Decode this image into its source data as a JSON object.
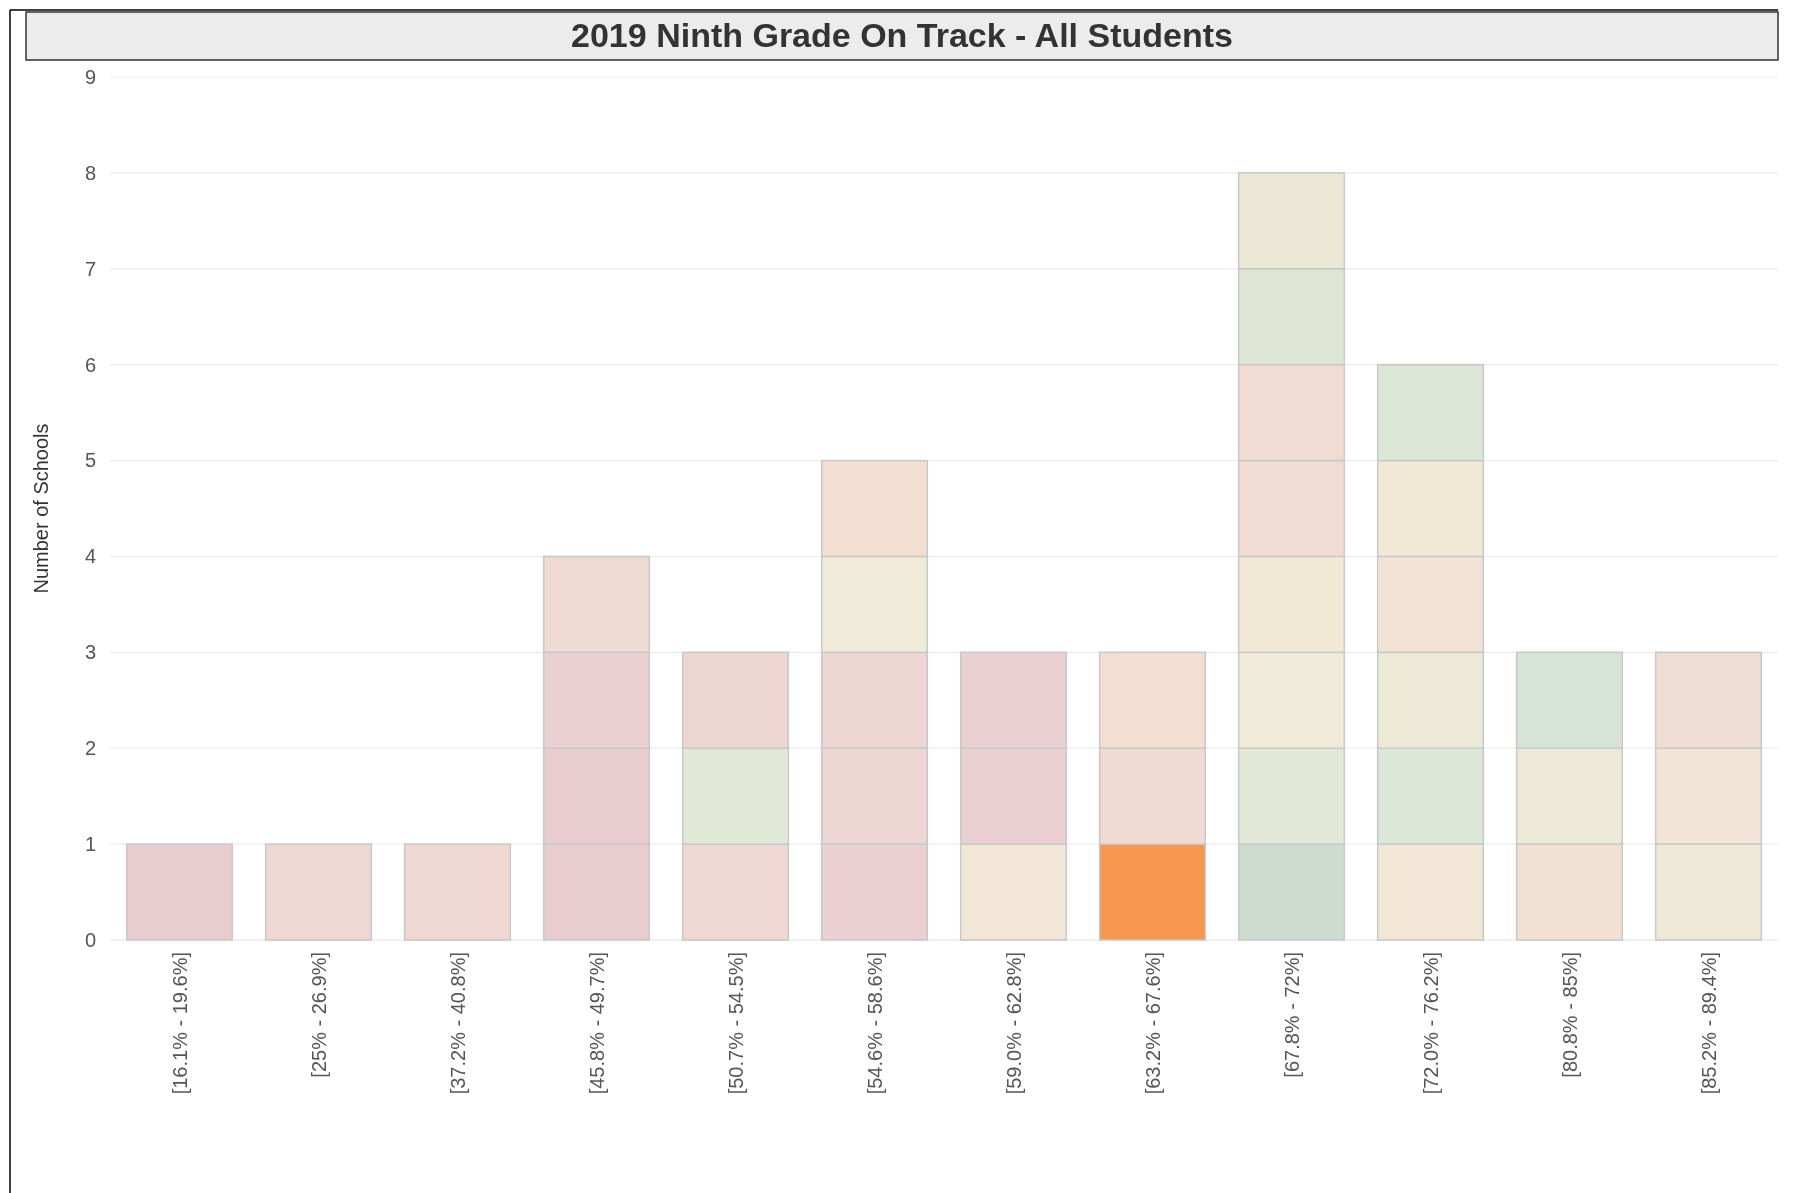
{
  "chart_data": {
    "type": "bar",
    "title": "2019 Ninth Grade On Track - All Students",
    "ylabel": "Number of Schools",
    "categories": [
      "[16.1% - 19.6%]",
      "[25% - 26.9%]",
      "[37.2% - 40.8%]",
      "[45.8% - 49.7%]",
      "[50.7% - 54.5%]",
      "[54.6% - 58.6%]",
      "[59.0% - 62.8%]",
      "[63.2% - 67.6%]",
      "[67.8% - 72%]",
      "[72.0% - 76.2%]",
      "[80.8% - 85%]",
      "[85.2% - 89.4%]"
    ],
    "stacked": true,
    "ylim": [
      0,
      9
    ],
    "yticks": [
      0,
      1,
      2,
      3,
      4,
      5,
      6,
      7,
      8,
      9
    ],
    "grid": "y",
    "series": [
      {
        "values": [
          1,
          1,
          1,
          1,
          1,
          1,
          1,
          1,
          1,
          1,
          1,
          1
        ],
        "colors": [
          "#e9ccd0",
          "#efd8d3",
          "#efd8d3",
          "#e9ccd0",
          "#efd8d3",
          "#ebd0d3",
          "#f2e6d6",
          "#f7964d",
          "#cddbd0",
          "#f2e6d6",
          "#f2e0d3",
          "#eee9d6"
        ]
      },
      {
        "values": [
          null,
          null,
          null,
          1,
          1,
          1,
          1,
          1,
          1,
          1,
          1,
          1
        ],
        "colors": [
          null,
          null,
          null,
          "#e9ccd0",
          "#e2e8d6",
          "#edd5d3",
          "#ebd0d3",
          "#f0dad4",
          "#e3e8d6",
          "#dce6d9",
          "#ece9d6",
          "#f2e4d6"
        ]
      },
      {
        "values": [
          null,
          null,
          null,
          1,
          1,
          1,
          1,
          1,
          1,
          1,
          1,
          1
        ],
        "colors": [
          null,
          null,
          null,
          "#ebd0d1",
          "#edd5d3",
          "#edd5d3",
          "#ebd0d3",
          "#f2dfd2",
          "#f0ead8",
          "#ece9d6",
          "#d6e3d6",
          "#f0ddd3"
        ]
      },
      {
        "values": [
          null,
          null,
          null,
          1,
          null,
          1,
          null,
          null,
          1,
          1,
          null,
          null
        ],
        "colors": [
          null,
          null,
          null,
          "#f0dad4",
          null,
          "#f0ead8",
          null,
          null,
          "#f1e8d6",
          "#f2e2d6",
          null,
          null
        ]
      },
      {
        "values": [
          null,
          null,
          null,
          null,
          null,
          1,
          null,
          null,
          1,
          1,
          null,
          null
        ],
        "colors": [
          null,
          null,
          null,
          null,
          null,
          "#f2dfd2",
          null,
          null,
          "#f1dcd4",
          "#f1e8d6",
          null,
          null
        ]
      },
      {
        "values": [
          null,
          null,
          null,
          null,
          null,
          null,
          null,
          null,
          1,
          1,
          null,
          null
        ],
        "colors": [
          null,
          null,
          null,
          null,
          null,
          null,
          null,
          null,
          "#f1dcd4",
          "#dce6d6",
          null,
          null
        ]
      },
      {
        "values": [
          null,
          null,
          null,
          null,
          null,
          null,
          null,
          null,
          1,
          null,
          null,
          null
        ],
        "colors": [
          null,
          null,
          null,
          null,
          null,
          null,
          null,
          null,
          "#dfe6d6",
          null,
          null,
          null
        ]
      },
      {
        "values": [
          null,
          null,
          null,
          null,
          null,
          null,
          null,
          null,
          1,
          null,
          null,
          null
        ],
        "colors": [
          null,
          null,
          null,
          null,
          null,
          null,
          null,
          null,
          "#ebe9d6",
          null,
          null,
          null
        ]
      }
    ]
  }
}
